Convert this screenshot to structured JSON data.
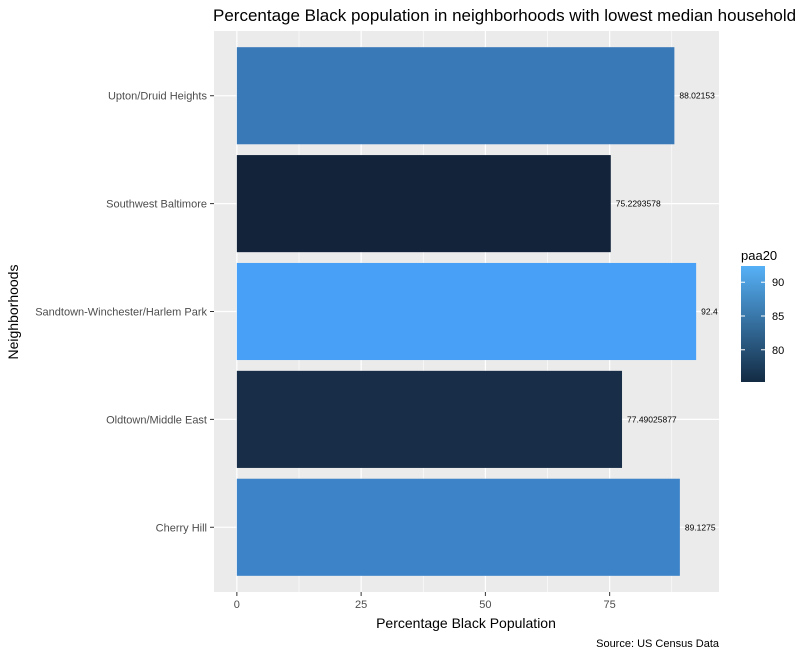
{
  "chart_data": {
    "type": "bar",
    "orientation": "horizontal",
    "title": "Percentage Black population in neighborhoods with lowest median household income",
    "xlabel": "Percentage Black Population",
    "ylabel": "Neighborhoods",
    "caption": "Source: US Census Data",
    "xlim": [
      -4.6,
      97
    ],
    "xticks": [
      0,
      25,
      50,
      75
    ],
    "categories": [
      "Cherry Hill",
      "Oldtown/Middle East",
      "Sandtown-Winchester/Harlem Park",
      "Southwest Baltimore",
      "Upton/Druid Heights"
    ],
    "values": [
      89.1275,
      77.49025877,
      92.4,
      75.2293578,
      88.02153
    ],
    "data_labels": [
      "89.1275",
      "77.49025877",
      "92.4",
      "75.2293578",
      "88.02153"
    ],
    "colors": [
      "#3D83C7",
      "#182D47",
      "#48A0F7",
      "#12233A",
      "#3979B8"
    ],
    "grid": true,
    "legend": {
      "title": "paa20",
      "position": "right",
      "ticks": [
        80,
        85,
        90
      ],
      "range": [
        75.2293578,
        92.4
      ],
      "low_color": "#132B43",
      "high_color": "#56B1F7"
    }
  }
}
